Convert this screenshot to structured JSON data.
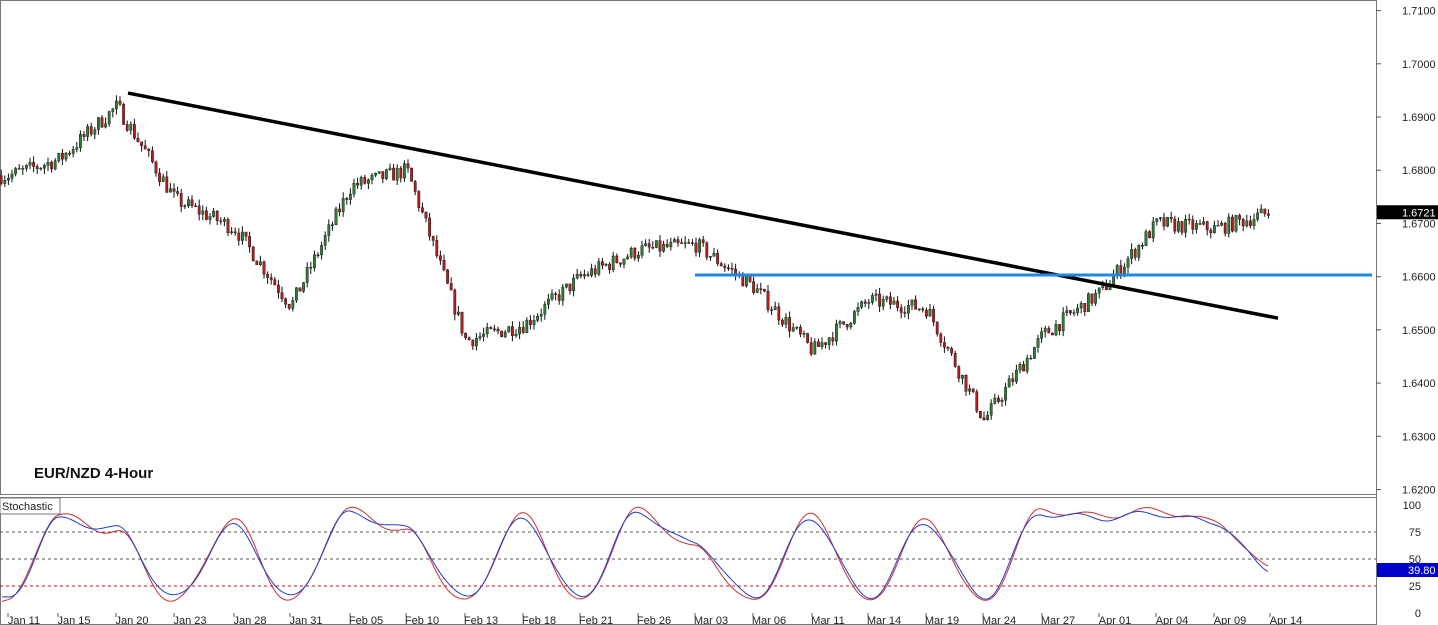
{
  "chart_data": [
    {
      "type": "candlestick",
      "title": "EUR/NZD 4-Hour",
      "xlabel": "",
      "ylabel": "",
      "ylim": [
        1.6185,
        1.7115
      ],
      "y_ticks": [
        "1.7100",
        "1.7000",
        "1.6900",
        "1.6800",
        "1.6700",
        "1.6600",
        "1.6500",
        "1.6400",
        "1.6300",
        "1.6200"
      ],
      "x_ticks": [
        "Jan 11",
        "Jan 15",
        "Jan 20",
        "Jan 23",
        "Jan 28",
        "Jan 31",
        "Feb 05",
        "Feb 10",
        "Feb 13",
        "Feb 18",
        "Feb 21",
        "Feb 26",
        "Mar 03",
        "Mar 06",
        "Mar 11",
        "Mar 14",
        "Mar 19",
        "Mar 24",
        "Mar 27",
        "Apr 01",
        "Apr 04",
        "Apr 09",
        "Apr 14"
      ],
      "current_price": "1.6721",
      "grid": false,
      "colors": {
        "up": "#2e7d32",
        "down": "#b71c1c",
        "wick": "#111111"
      },
      "close_path": [
        [
          "Jan 11",
          1.679
        ],
        [
          "Jan 15",
          1.682
        ],
        [
          "Jan 20",
          1.692
        ],
        [
          "Jan 23",
          1.6745
        ],
        [
          "Jan 28",
          1.669
        ],
        [
          "Jan 31",
          1.6545
        ],
        [
          "Feb 05",
          1.677
        ],
        [
          "Feb 10",
          1.68
        ],
        [
          "Feb 13",
          1.648
        ],
        [
          "Feb 18",
          1.651
        ],
        [
          "Feb 21",
          1.66
        ],
        [
          "Feb 26",
          1.665
        ],
        [
          "Mar 03",
          1.666
        ],
        [
          "Mar 06",
          1.658
        ],
        [
          "Mar 11",
          1.646
        ],
        [
          "Mar 14",
          1.6555
        ],
        [
          "Mar 19",
          1.654
        ],
        [
          "Mar 24",
          1.633
        ],
        [
          "Mar 27",
          1.649
        ],
        [
          "Apr 01",
          1.657
        ],
        [
          "Apr 04",
          1.67
        ],
        [
          "Apr 09",
          1.669
        ],
        [
          "Apr 14",
          1.6721
        ]
      ],
      "annotations": [
        {
          "type": "trendline",
          "color": "#000000",
          "from": [
            "Jan 20",
            1.6945
          ],
          "to": [
            "Apr 14",
            1.6522
          ]
        },
        {
          "type": "horizontal",
          "color": "#1e88e5",
          "from_x": "Mar 03",
          "value": 1.6603
        }
      ]
    },
    {
      "type": "line",
      "title": "Stochastic",
      "ylim": [
        0,
        100
      ],
      "y_ticks": [
        "100",
        "75",
        "50",
        "25",
        "0"
      ],
      "levels": [
        75,
        50,
        25
      ],
      "current_value": "39.80",
      "series": [
        {
          "color": "#d32f2f",
          "points": [
            [
              "Jan 11",
              10
            ],
            [
              "Jan 15",
              90
            ],
            [
              "Jan 20",
              75
            ],
            [
              "Jan 23",
              10
            ],
            [
              "Jan 28",
              85
            ],
            [
              "Jan 31",
              10
            ],
            [
              "Feb 05",
              95
            ],
            [
              "Feb 10",
              75
            ],
            [
              "Feb 13",
              10
            ],
            [
              "Feb 18",
              90
            ],
            [
              "Feb 21",
              10
            ],
            [
              "Feb 26",
              95
            ],
            [
              "Mar 03",
              60
            ],
            [
              "Mar 06",
              10
            ],
            [
              "Mar 11",
              90
            ],
            [
              "Mar 14",
              10
            ],
            [
              "Mar 19",
              85
            ],
            [
              "Mar 24",
              10
            ],
            [
              "Mar 27",
              95
            ],
            [
              "Apr 01",
              90
            ],
            [
              "Apr 04",
              95
            ],
            [
              "Apr 09",
              85
            ],
            [
              "Apr 14",
              42
            ]
          ]
        },
        {
          "color": "#1e40d0",
          "points": [
            [
              "Jan 11",
              12
            ],
            [
              "Jan 15",
              86
            ],
            [
              "Jan 20",
              78
            ],
            [
              "Jan 23",
              14
            ],
            [
              "Jan 28",
              80
            ],
            [
              "Jan 31",
              14
            ],
            [
              "Feb 05",
              92
            ],
            [
              "Feb 10",
              78
            ],
            [
              "Feb 13",
              14
            ],
            [
              "Feb 18",
              86
            ],
            [
              "Feb 21",
              14
            ],
            [
              "Feb 26",
              92
            ],
            [
              "Mar 03",
              64
            ],
            [
              "Mar 06",
              14
            ],
            [
              "Mar 11",
              86
            ],
            [
              "Mar 14",
              14
            ],
            [
              "Mar 19",
              82
            ],
            [
              "Mar 24",
              14
            ],
            [
              "Mar 27",
              92
            ],
            [
              "Apr 01",
              88
            ],
            [
              "Apr 04",
              92
            ],
            [
              "Apr 09",
              84
            ],
            [
              "Apr 14",
              39.8
            ]
          ]
        }
      ]
    }
  ]
}
